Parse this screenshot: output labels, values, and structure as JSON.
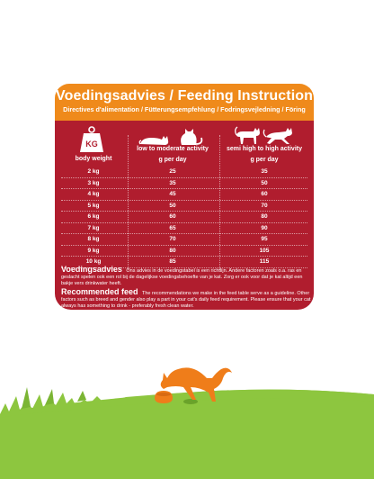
{
  "header": {
    "title": "Voedingsadvies / Feeding Instruction",
    "subtitle": "Directives d'alimentation / Fütterungsempfehlung / Fodringsvejledning / Föring"
  },
  "table": {
    "weight_header": "body weight",
    "low_header": "low to moderate activity",
    "low_unit": "g per day",
    "high_header": "semi high to high activity",
    "high_unit": "g per day",
    "kg_icon_label": "KG",
    "rows": [
      {
        "weight": "2 kg",
        "low": "25",
        "high": "35"
      },
      {
        "weight": "3 kg",
        "low": "35",
        "high": "50"
      },
      {
        "weight": "4 kg",
        "low": "45",
        "high": "60"
      },
      {
        "weight": "5 kg",
        "low": "50",
        "high": "70"
      },
      {
        "weight": "6 kg",
        "low": "60",
        "high": "80"
      },
      {
        "weight": "7 kg",
        "low": "65",
        "high": "90"
      },
      {
        "weight": "8 kg",
        "low": "70",
        "high": "95"
      },
      {
        "weight": "9 kg",
        "low": "80",
        "high": "105"
      },
      {
        "weight": "10 kg",
        "low": "85",
        "high": "115"
      }
    ]
  },
  "notes": {
    "nl_title": "Voedingsadvies",
    "nl_text": "Ons advies in de voedingstabel is een richtlijn. Andere factoren zoals o.a. ras en geslacht spelen ook een rol bij de dagelijkse voedingsbehoefte van je kat. Zorg er ook voor dat je kat altijd een bakje vers drinkwater heeft.",
    "en_title": "Recommended feed",
    "en_text": "The recommendations we make in the feed table serve as a guideline. Other factors such as breed and gender also play a part in your cat's daily feed requirement. Please ensure that your cat always has something to drink - preferably fresh clean water."
  },
  "colors": {
    "card": "#b01d2e",
    "header": "#ef8a1b",
    "grass": "#8dc63f",
    "cat": "#ef7d1a"
  },
  "icons": [
    "kg-weight-icon",
    "lying-cat-icon",
    "sitting-cat-icon",
    "standing-cat-icon",
    "running-cat-icon",
    "eating-cat-illustration"
  ]
}
